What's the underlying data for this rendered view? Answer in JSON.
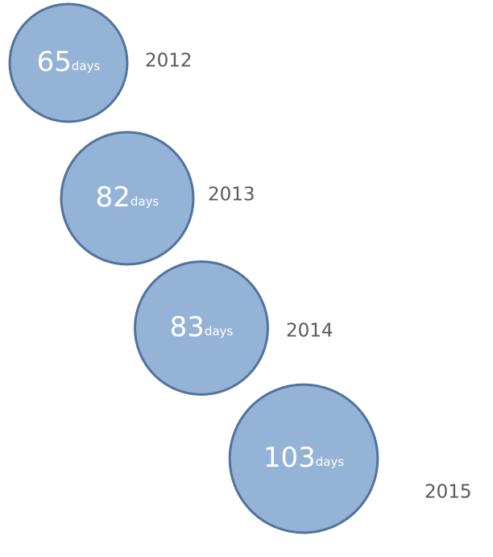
{
  "chart_data": {
    "type": "bubble",
    "categories": [
      "2012",
      "2013",
      "2014",
      "2015"
    ],
    "values": [
      65,
      82,
      83,
      103
    ],
    "unit": "days",
    "color": "#95b3d7",
    "edge_color": "#52739b"
  }
}
